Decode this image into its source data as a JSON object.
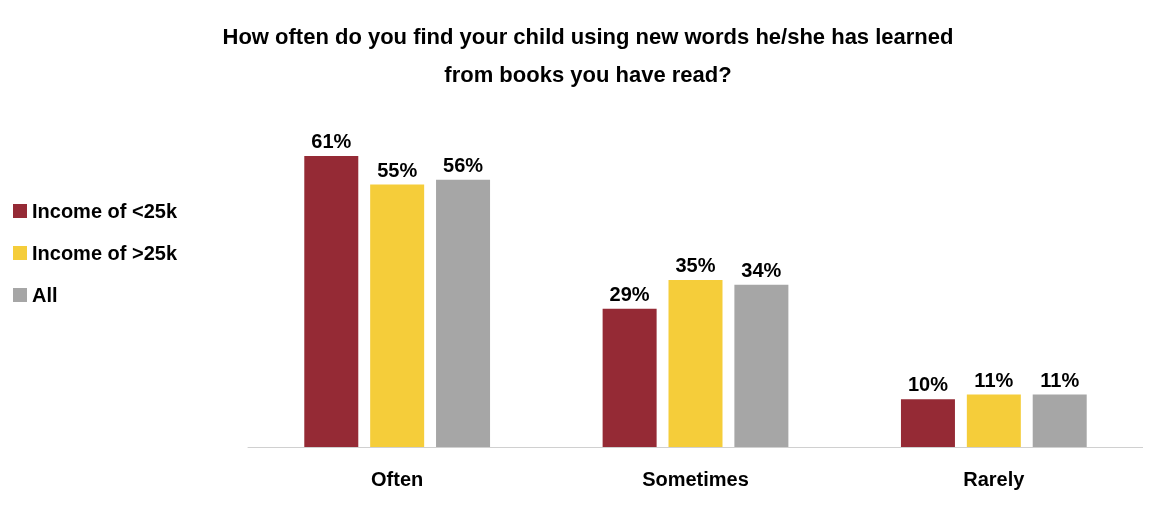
{
  "chart_data": {
    "type": "bar",
    "title": "How often do you find your child using new words he/she has learned\nfrom books you have read?",
    "categories": [
      "Often",
      "Sometimes",
      "Rarely"
    ],
    "series": [
      {
        "name": "Income of <25k",
        "color": "#952a35",
        "values": [
          61,
          29,
          10
        ],
        "value_labels": [
          "61%",
          "29%",
          "10%"
        ]
      },
      {
        "name": "Income of >25k",
        "color": "#f5cd3a",
        "values": [
          55,
          35,
          11
        ],
        "value_labels": [
          "55%",
          "35%",
          "11%"
        ]
      },
      {
        "name": "All",
        "color": "#a6a6a6",
        "values": [
          56,
          34,
          11
        ],
        "value_labels": [
          "56%",
          "34%",
          "11%"
        ]
      }
    ],
    "legend": "left"
  }
}
